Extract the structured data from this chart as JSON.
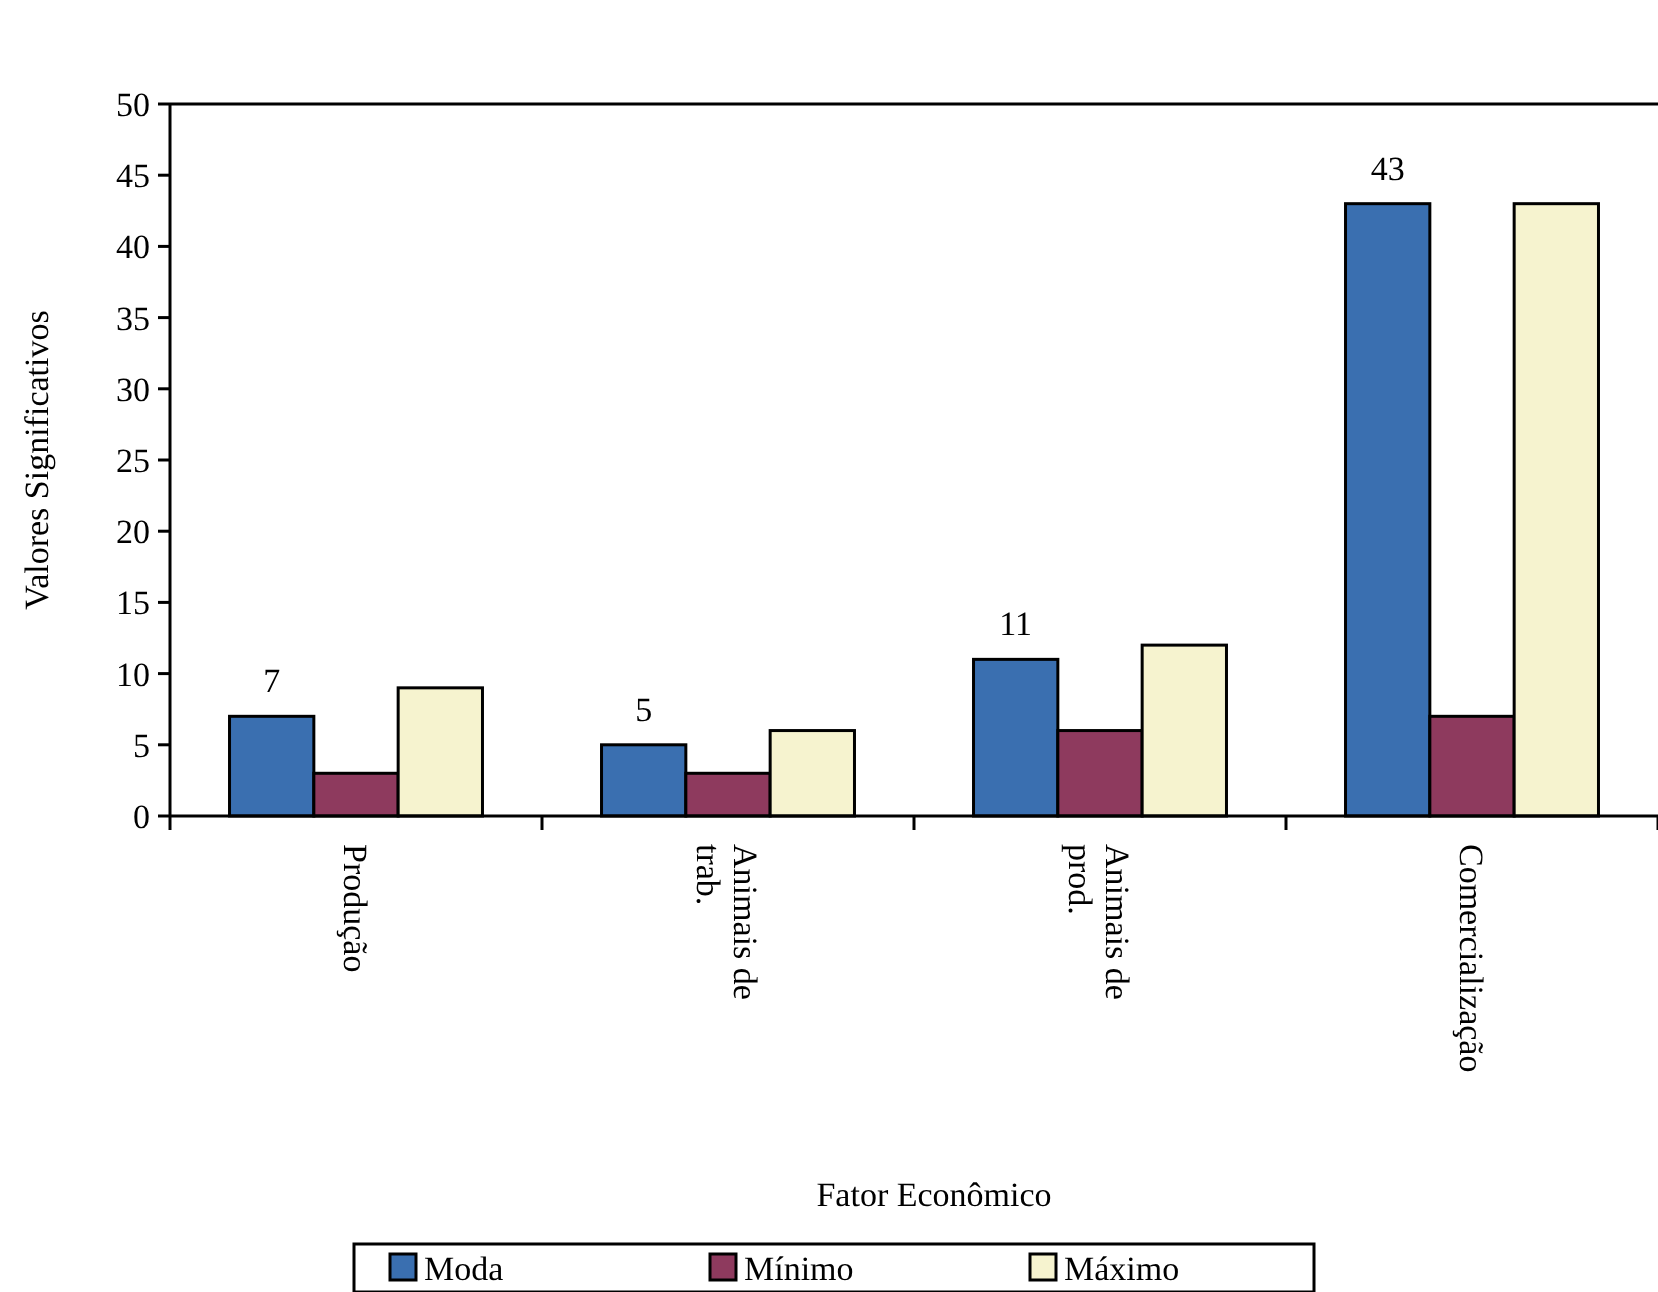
{
  "chart_data": {
    "type": "bar",
    "xlabel": "Fator Econômico",
    "ylabel": "Valores  Significativos",
    "categories": [
      "Produção",
      "Animais de trab.",
      "Animais de prod.",
      "Comercialização"
    ],
    "series": [
      {
        "name": "Moda",
        "color": "#3a6fb0",
        "values": [
          7,
          5,
          11,
          43
        ],
        "value_labels": [
          "7",
          "5",
          "11",
          "43"
        ]
      },
      {
        "name": "Mínimo",
        "color": "#8e3a5e",
        "values": [
          3,
          3,
          6,
          7
        ]
      },
      {
        "name": "Máximo",
        "color": "#f6f3cf",
        "values": [
          9,
          6,
          12,
          43
        ]
      }
    ],
    "ylim": [
      0,
      50
    ],
    "yticks": [
      0,
      5,
      10,
      15,
      20,
      25,
      30,
      35,
      40,
      45,
      50
    ],
    "grid": false,
    "legend": "bottom"
  }
}
